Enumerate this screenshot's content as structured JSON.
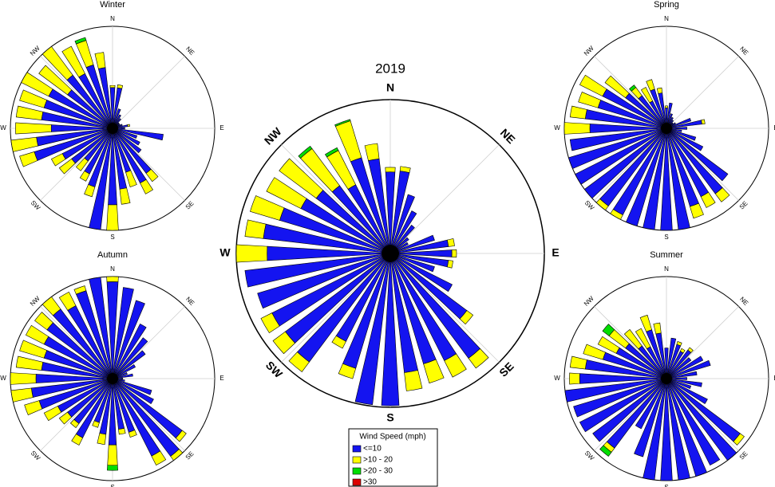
{
  "chart_data": [
    {
      "type": "rose",
      "title": "2019",
      "x": [
        0,
        10,
        20,
        30,
        40,
        50,
        60,
        70,
        80,
        90,
        100,
        110,
        120,
        130,
        140,
        150,
        160,
        170,
        180,
        190,
        200,
        210,
        220,
        230,
        240,
        250,
        260,
        270,
        280,
        290,
        300,
        310,
        320,
        330,
        340,
        350
      ],
      "rlim": [
        0,
        100
      ],
      "compass": [
        {
          "value": 0,
          "label": "N"
        },
        {
          "value": 45,
          "label": "NE"
        },
        {
          "value": 90,
          "label": "E"
        },
        {
          "value": 135,
          "label": "SE"
        },
        {
          "value": 180,
          "label": "S"
        },
        {
          "value": 225,
          "label": "SW"
        },
        {
          "value": 270,
          "label": "W"
        },
        {
          "value": 315,
          "label": "NW"
        }
      ],
      "series": [
        {
          "values": [
            53,
            54,
            40,
            31,
            23,
            15,
            13,
            30,
            38,
            40,
            38,
            30,
            45,
            62,
            85,
            78,
            75,
            78,
            99,
            99,
            78,
            64,
            88,
            85,
            86,
            90,
            95,
            80,
            83,
            75,
            65,
            60,
            55,
            50,
            65,
            62
          ]
        },
        {
          "values": [
            3,
            3,
            0,
            0,
            0,
            0,
            0,
            0,
            4,
            3,
            3,
            0,
            0,
            5,
            8,
            12,
            13,
            12,
            0,
            0,
            7,
            5,
            8,
            10,
            8,
            0,
            0,
            20,
            12,
            20,
            25,
            30,
            30,
            25,
            25,
            10
          ]
        },
        {
          "values": [
            0,
            0,
            0,
            0,
            0,
            0,
            0,
            0,
            0,
            0,
            0,
            0,
            0,
            0,
            0,
            0,
            0,
            0,
            0,
            0,
            0,
            0,
            0,
            0,
            0,
            0,
            0,
            0,
            0,
            0,
            0,
            0,
            2,
            2,
            1,
            0
          ]
        },
        {
          "values": [
            0,
            0,
            0,
            0,
            0,
            0,
            0,
            0,
            0,
            0,
            0,
            0,
            0,
            0,
            0,
            0,
            0,
            0,
            0,
            0,
            0,
            0,
            0,
            0,
            0,
            0,
            0,
            0,
            0,
            0,
            0,
            0,
            0,
            0,
            0,
            0
          ]
        }
      ]
    },
    {
      "type": "rose",
      "title": "Winter",
      "x": [
        0,
        10,
        20,
        30,
        40,
        50,
        60,
        70,
        80,
        90,
        100,
        110,
        120,
        130,
        140,
        150,
        160,
        170,
        180,
        190,
        200,
        210,
        220,
        230,
        240,
        250,
        260,
        270,
        280,
        290,
        300,
        310,
        320,
        330,
        340,
        350
      ],
      "rlim": [
        0,
        100
      ],
      "compass": [
        {
          "value": 0,
          "label": "N"
        },
        {
          "value": 45,
          "label": "NE"
        },
        {
          "value": 90,
          "label": "E"
        },
        {
          "value": 135,
          "label": "SE"
        },
        {
          "value": 180,
          "label": "S"
        },
        {
          "value": 225,
          "label": "SW"
        },
        {
          "value": 270,
          "label": "W"
        },
        {
          "value": 315,
          "label": "NW"
        }
      ],
      "series": [
        {
          "values": [
            40,
            40,
            20,
            15,
            12,
            8,
            8,
            10,
            15,
            12,
            50,
            25,
            30,
            35,
            55,
            60,
            45,
            60,
            75,
            100,
            60,
            50,
            40,
            50,
            55,
            80,
            75,
            60,
            70,
            70,
            70,
            55,
            65,
            60,
            65,
            60
          ]
        },
        {
          "values": [
            2,
            3,
            0,
            0,
            0,
            0,
            0,
            0,
            2,
            0,
            0,
            0,
            0,
            0,
            10,
            12,
            15,
            15,
            25,
            0,
            10,
            8,
            12,
            15,
            12,
            15,
            25,
            35,
            25,
            25,
            30,
            35,
            35,
            30,
            25,
            15
          ]
        },
        {
          "values": [
            0,
            0,
            0,
            0,
            0,
            0,
            0,
            0,
            0,
            0,
            0,
            0,
            0,
            0,
            0,
            0,
            0,
            0,
            0,
            0,
            0,
            0,
            0,
            0,
            0,
            0,
            0,
            0,
            0,
            0,
            0,
            0,
            0,
            0,
            3,
            0
          ]
        },
        {
          "values": [
            0,
            0,
            0,
            0,
            0,
            0,
            0,
            0,
            0,
            0,
            0,
            0,
            0,
            0,
            0,
            0,
            0,
            0,
            0,
            0,
            0,
            0,
            0,
            0,
            0,
            0,
            0,
            0,
            0,
            0,
            0,
            0,
            0,
            0,
            0,
            0
          ]
        }
      ]
    },
    {
      "type": "rose",
      "title": "Spring",
      "x": [
        0,
        10,
        20,
        30,
        40,
        50,
        60,
        70,
        80,
        90,
        100,
        110,
        120,
        130,
        140,
        150,
        160,
        170,
        180,
        190,
        200,
        210,
        220,
        230,
        240,
        250,
        260,
        270,
        280,
        290,
        300,
        310,
        320,
        330,
        340,
        350
      ],
      "rlim": [
        0,
        100
      ],
      "compass": [
        {
          "value": 0,
          "label": "N"
        },
        {
          "value": 45,
          "label": "NE"
        },
        {
          "value": 90,
          "label": "E"
        },
        {
          "value": 135,
          "label": "SE"
        },
        {
          "value": 180,
          "label": "S"
        },
        {
          "value": 225,
          "label": "SW"
        },
        {
          "value": 270,
          "label": "W"
        },
        {
          "value": 315,
          "label": "NW"
        }
      ],
      "series": [
        {
          "values": [
            20,
            25,
            15,
            12,
            10,
            8,
            10,
            25,
            35,
            20,
            15,
            30,
            40,
            75,
            80,
            75,
            80,
            100,
            100,
            100,
            100,
            95,
            95,
            100,
            100,
            100,
            95,
            75,
            80,
            70,
            70,
            50,
            40,
            30,
            40,
            35
          ]
        },
        {
          "values": [
            2,
            0,
            0,
            0,
            0,
            0,
            0,
            0,
            3,
            0,
            0,
            0,
            0,
            0,
            10,
            12,
            12,
            0,
            0,
            0,
            0,
            5,
            5,
            0,
            0,
            0,
            0,
            25,
            15,
            20,
            25,
            25,
            10,
            15,
            10,
            5
          ]
        },
        {
          "values": [
            0,
            0,
            0,
            0,
            0,
            0,
            0,
            0,
            0,
            0,
            0,
            0,
            0,
            0,
            0,
            0,
            0,
            0,
            0,
            0,
            0,
            0,
            0,
            0,
            0,
            0,
            0,
            0,
            0,
            0,
            0,
            0,
            3,
            0,
            0,
            0
          ]
        },
        {
          "values": [
            0,
            0,
            0,
            0,
            0,
            0,
            0,
            0,
            0,
            0,
            0,
            0,
            0,
            0,
            0,
            0,
            0,
            0,
            0,
            0,
            0,
            0,
            0,
            0,
            0,
            0,
            0,
            0,
            0,
            0,
            0,
            0,
            0,
            0,
            0,
            0
          ]
        }
      ]
    },
    {
      "type": "rose",
      "title": "Autumn",
      "x": [
        0,
        10,
        20,
        30,
        40,
        50,
        60,
        70,
        80,
        90,
        100,
        110,
        120,
        130,
        140,
        150,
        160,
        170,
        180,
        190,
        200,
        210,
        220,
        230,
        240,
        250,
        260,
        270,
        280,
        290,
        300,
        310,
        320,
        330,
        340,
        350
      ],
      "rlim": [
        0,
        100
      ],
      "compass": [
        {
          "value": 0,
          "label": "N"
        },
        {
          "value": 45,
          "label": "NE"
        },
        {
          "value": 90,
          "label": "E"
        },
        {
          "value": 135,
          "label": "SE"
        },
        {
          "value": 180,
          "label": "S"
        },
        {
          "value": 225,
          "label": "SW"
        },
        {
          "value": 270,
          "label": "W"
        },
        {
          "value": 315,
          "label": "NW"
        }
      ],
      "series": [
        {
          "values": [
            95,
            90,
            80,
            60,
            50,
            40,
            25,
            15,
            20,
            10,
            12,
            40,
            45,
            85,
            95,
            85,
            55,
            50,
            65,
            55,
            45,
            65,
            55,
            55,
            60,
            75,
            80,
            75,
            70,
            70,
            75,
            80,
            85,
            80,
            90,
            100
          ]
        },
        {
          "values": [
            5,
            0,
            0,
            0,
            0,
            0,
            0,
            0,
            0,
            0,
            0,
            0,
            0,
            5,
            5,
            10,
            5,
            5,
            20,
            10,
            5,
            8,
            5,
            10,
            15,
            15,
            20,
            25,
            25,
            25,
            20,
            15,
            15,
            15,
            5,
            0
          ]
        },
        {
          "values": [
            0,
            0,
            0,
            0,
            0,
            0,
            0,
            0,
            0,
            0,
            0,
            0,
            0,
            0,
            0,
            0,
            0,
            0,
            5,
            0,
            0,
            0,
            0,
            0,
            0,
            0,
            0,
            0,
            0,
            0,
            0,
            0,
            0,
            0,
            0,
            0
          ]
        },
        {
          "values": [
            0,
            0,
            0,
            0,
            0,
            0,
            0,
            0,
            0,
            0,
            0,
            0,
            0,
            0,
            0,
            0,
            0,
            0,
            0,
            0,
            0,
            0,
            0,
            0,
            0,
            0,
            0,
            0,
            0,
            0,
            0,
            0,
            0,
            0,
            0,
            0
          ]
        }
      ]
    },
    {
      "type": "rose",
      "title": "Summer",
      "x": [
        0,
        10,
        20,
        30,
        40,
        50,
        60,
        70,
        80,
        90,
        100,
        110,
        120,
        130,
        140,
        150,
        160,
        170,
        180,
        190,
        200,
        210,
        220,
        230,
        240,
        250,
        260,
        270,
        280,
        290,
        300,
        310,
        320,
        330,
        340,
        350
      ],
      "rlim": [
        0,
        100
      ],
      "compass": [
        {
          "value": 0,
          "label": "N"
        },
        {
          "value": 45,
          "label": "NE"
        },
        {
          "value": 90,
          "label": "E"
        },
        {
          "value": 135,
          "label": "SE"
        },
        {
          "value": 180,
          "label": "S"
        },
        {
          "value": 225,
          "label": "SW"
        },
        {
          "value": 270,
          "label": "W"
        },
        {
          "value": 315,
          "label": "NW"
        }
      ],
      "series": [
        {
          "values": [
            30,
            40,
            35,
            30,
            35,
            30,
            40,
            45,
            30,
            20,
            35,
            25,
            45,
            90,
            100,
            95,
            100,
            100,
            100,
            100,
            80,
            55,
            85,
            90,
            95,
            95,
            100,
            85,
            80,
            65,
            55,
            50,
            40,
            35,
            50,
            45
          ]
        },
        {
          "values": [
            0,
            0,
            3,
            3,
            3,
            0,
            0,
            0,
            0,
            0,
            0,
            0,
            0,
            5,
            0,
            0,
            0,
            0,
            0,
            0,
            0,
            0,
            5,
            0,
            0,
            0,
            0,
            10,
            15,
            20,
            20,
            20,
            20,
            20,
            15,
            10
          ]
        },
        {
          "values": [
            0,
            0,
            0,
            0,
            0,
            0,
            0,
            0,
            0,
            0,
            0,
            0,
            0,
            0,
            0,
            0,
            0,
            0,
            0,
            0,
            0,
            0,
            5,
            0,
            0,
            0,
            0,
            0,
            0,
            0,
            0,
            8,
            0,
            0,
            0,
            0
          ]
        },
        {
          "values": [
            0,
            0,
            0,
            0,
            0,
            0,
            0,
            0,
            0,
            0,
            0,
            0,
            0,
            0,
            0,
            0,
            0,
            0,
            0,
            0,
            0,
            0,
            0,
            0,
            0,
            0,
            0,
            0,
            0,
            0,
            0,
            0,
            0,
            0,
            0,
            0
          ]
        }
      ]
    }
  ],
  "legend": {
    "title": "Wind Speed (mph)",
    "series": [
      {
        "name": "<=10",
        "color": "#1414f0"
      },
      {
        "name": ">10 - 20",
        "color": "#ffff00"
      },
      {
        "name": ">20 - 30",
        "color": "#00dd00"
      },
      {
        "name": ">30",
        "color": "#dd0000"
      }
    ]
  }
}
